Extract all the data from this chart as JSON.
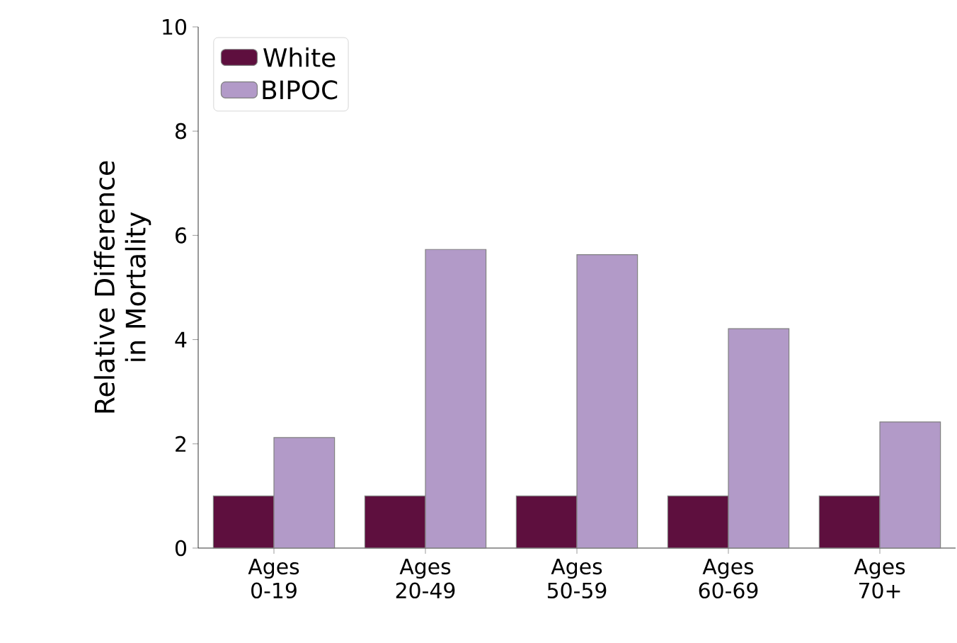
{
  "chart_data": {
    "type": "bar",
    "ylabel": "Relative Difference in Mortality",
    "categories": [
      "Ages 0-19",
      "Ages 20-49",
      "Ages 50-59",
      "Ages 60-69",
      "Ages 70+"
    ],
    "series": [
      {
        "name": "White",
        "color": "#5e0f3e",
        "values": [
          1,
          1,
          1,
          1,
          1
        ]
      },
      {
        "name": "BIPOC",
        "color": "#b29ac8",
        "values": [
          2.12,
          5.73,
          5.63,
          4.21,
          2.42
        ]
      }
    ],
    "ylim": [
      0,
      10
    ],
    "yticks": [
      0,
      2,
      4,
      6,
      8,
      10
    ],
    "legend": "top left",
    "grid": false
  }
}
